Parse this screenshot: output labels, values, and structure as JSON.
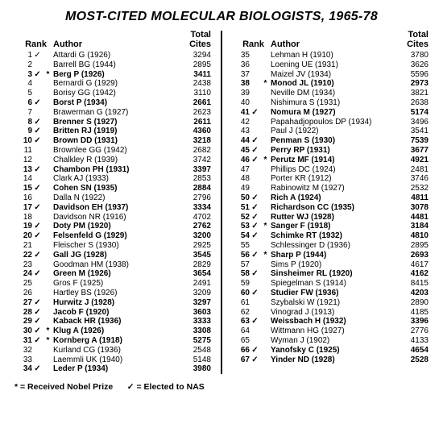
{
  "title": "MOST-CITED MOLECULAR BIOLOGISTS, 1965-78",
  "headers": {
    "rank": "Rank",
    "author": "Author",
    "cites_line1": "Total",
    "cites_line2": "Cites"
  },
  "legend": "* = Received Nobel Prize      ✓ = Elected to NAS",
  "left": [
    {
      "rank": 1,
      "check": true,
      "star": false,
      "bold": false,
      "author": "Attardi G (1926)",
      "cites": 3294
    },
    {
      "rank": 2,
      "check": false,
      "star": false,
      "bold": false,
      "author": "Barrell BG (1944)",
      "cites": 2895
    },
    {
      "rank": 3,
      "check": true,
      "star": true,
      "bold": true,
      "author": "Berg P (1926)",
      "cites": 3411
    },
    {
      "rank": 4,
      "check": false,
      "star": false,
      "bold": false,
      "author": "Bernardi G (1929)",
      "cites": 2438
    },
    {
      "rank": 5,
      "check": false,
      "star": false,
      "bold": false,
      "author": "Borisy GG (1942)",
      "cites": 3110
    },
    {
      "rank": 6,
      "check": true,
      "star": false,
      "bold": true,
      "author": "Borst P (1934)",
      "cites": 2661
    },
    {
      "rank": 7,
      "check": false,
      "star": false,
      "bold": false,
      "author": "Brawerman G (1927)",
      "cites": 2623
    },
    {
      "rank": 8,
      "check": true,
      "star": false,
      "bold": true,
      "author": "Brenner S (1927)",
      "cites": 2611
    },
    {
      "rank": 9,
      "check": true,
      "star": false,
      "bold": true,
      "author": "Britten RJ (1919)",
      "cites": 4360
    },
    {
      "rank": 10,
      "check": true,
      "star": false,
      "bold": true,
      "author": "Brown DD (1931)",
      "cites": 3218
    },
    {
      "rank": 11,
      "check": false,
      "star": false,
      "bold": false,
      "author": "Brownlee GG (1942)",
      "cites": 2682
    },
    {
      "rank": 12,
      "check": false,
      "star": false,
      "bold": false,
      "author": "Chalkley R (1939)",
      "cites": 3742
    },
    {
      "rank": 13,
      "check": true,
      "star": false,
      "bold": true,
      "author": "Chambon PH (1931)",
      "cites": 3397
    },
    {
      "rank": 14,
      "check": false,
      "star": false,
      "bold": false,
      "author": "Clark AJ (1933)",
      "cites": 2853
    },
    {
      "rank": 15,
      "check": true,
      "star": false,
      "bold": true,
      "author": "Cohen SN (1935)",
      "cites": 2884
    },
    {
      "rank": 16,
      "check": false,
      "star": false,
      "bold": false,
      "author": "Dalla N (1922)",
      "cites": 2796
    },
    {
      "rank": 17,
      "check": true,
      "star": false,
      "bold": true,
      "author": "Davidson EH (1937)",
      "cites": 3334
    },
    {
      "rank": 18,
      "check": false,
      "star": false,
      "bold": false,
      "author": "Davidson NR (1916)",
      "cites": 4702
    },
    {
      "rank": 19,
      "check": true,
      "star": false,
      "bold": true,
      "author": "Doty PM (1920)",
      "cites": 2762
    },
    {
      "rank": 20,
      "check": true,
      "star": false,
      "bold": true,
      "author": "Felsenfeld G (1929)",
      "cites": 3200
    },
    {
      "rank": 21,
      "check": false,
      "star": false,
      "bold": false,
      "author": "Fleischer S (1930)",
      "cites": 2925
    },
    {
      "rank": 22,
      "check": true,
      "star": false,
      "bold": true,
      "author": "Gall JG (1928)",
      "cites": 3545
    },
    {
      "rank": 23,
      "check": false,
      "star": false,
      "bold": false,
      "author": "Goodman HM (1938)",
      "cites": 2829
    },
    {
      "rank": 24,
      "check": true,
      "star": false,
      "bold": true,
      "author": "Green M (1926)",
      "cites": 3654
    },
    {
      "rank": 25,
      "check": false,
      "star": false,
      "bold": false,
      "author": "Gros F (1925)",
      "cites": 2491
    },
    {
      "rank": 26,
      "check": false,
      "star": false,
      "bold": false,
      "author": "Hartley BS (1926)",
      "cites": 3209
    },
    {
      "rank": 27,
      "check": true,
      "star": false,
      "bold": true,
      "author": "Hurwitz J (1928)",
      "cites": 3297
    },
    {
      "rank": 28,
      "check": true,
      "star": false,
      "bold": true,
      "author": "Jacob F (1920)",
      "cites": 3603
    },
    {
      "rank": 29,
      "check": true,
      "star": false,
      "bold": true,
      "author": "Kaback HR (1936)",
      "cites": 3333
    },
    {
      "rank": 30,
      "check": true,
      "star": true,
      "bold": true,
      "author": "Klug A (1926)",
      "cites": 3308
    },
    {
      "rank": 31,
      "check": true,
      "star": true,
      "bold": true,
      "author": "Kornberg A (1918)",
      "cites": 5275
    },
    {
      "rank": 32,
      "check": false,
      "star": false,
      "bold": false,
      "author": "Kurland CG (1936)",
      "cites": 2548
    },
    {
      "rank": 33,
      "check": false,
      "star": false,
      "bold": false,
      "author": "Laemmli UK (1940)",
      "cites": 5148
    },
    {
      "rank": 34,
      "check": true,
      "star": false,
      "bold": true,
      "author": "Leder P (1934)",
      "cites": 3980
    }
  ],
  "right": [
    {
      "rank": 35,
      "check": false,
      "star": false,
      "bold": false,
      "author": "Lehman H (1910)",
      "cites": 3780
    },
    {
      "rank": 36,
      "check": false,
      "star": false,
      "bold": false,
      "author": "Loening UE (1931)",
      "cites": 3626
    },
    {
      "rank": 37,
      "check": false,
      "star": false,
      "bold": false,
      "author": "Maizel JV (1934)",
      "cites": 5596
    },
    {
      "rank": 38,
      "check": false,
      "star": true,
      "bold": true,
      "author": "Monod JL (1910)",
      "cites": 2973
    },
    {
      "rank": 39,
      "check": false,
      "star": false,
      "bold": false,
      "author": "Neville DM (1934)",
      "cites": 3821
    },
    {
      "rank": 40,
      "check": false,
      "star": false,
      "bold": false,
      "author": "Nishimura S (1931)",
      "cites": 2638
    },
    {
      "rank": 41,
      "check": true,
      "star": false,
      "bold": true,
      "author": "Nomura M (1927)",
      "cites": 5174
    },
    {
      "rank": 42,
      "check": false,
      "star": false,
      "bold": false,
      "author": "Papahadjopoulos DP (1934)",
      "cites": 3496
    },
    {
      "rank": 43,
      "check": false,
      "star": false,
      "bold": false,
      "author": "Paul J (1922)",
      "cites": 3541
    },
    {
      "rank": 44,
      "check": true,
      "star": false,
      "bold": true,
      "author": "Penman S (1930)",
      "cites": 7539
    },
    {
      "rank": 45,
      "check": true,
      "star": false,
      "bold": true,
      "author": "Perry RP (1931)",
      "cites": 3677
    },
    {
      "rank": 46,
      "check": true,
      "star": true,
      "bold": true,
      "author": "Perutz MF (1914)",
      "cites": 4921
    },
    {
      "rank": 47,
      "check": false,
      "star": false,
      "bold": false,
      "author": "Phillips DC (1924)",
      "cites": 2481
    },
    {
      "rank": 48,
      "check": false,
      "star": false,
      "bold": false,
      "author": "Porter KR (1912)",
      "cites": 3746
    },
    {
      "rank": 49,
      "check": false,
      "star": false,
      "bold": false,
      "author": "Rabinowitz M (1927)",
      "cites": 2532
    },
    {
      "rank": 50,
      "check": true,
      "star": false,
      "bold": true,
      "author": "Rich A (1924)",
      "cites": 4811
    },
    {
      "rank": 51,
      "check": true,
      "star": false,
      "bold": true,
      "author": "Richardson CC (1935)",
      "cites": 3078
    },
    {
      "rank": 52,
      "check": true,
      "star": false,
      "bold": true,
      "author": "Rutter WJ (1928)",
      "cites": 4481
    },
    {
      "rank": 53,
      "check": true,
      "star": true,
      "bold": true,
      "author": "Sanger F (1918)",
      "cites": 3184
    },
    {
      "rank": 54,
      "check": true,
      "star": false,
      "bold": true,
      "author": "Schimke RT (1932)",
      "cites": 4810
    },
    {
      "rank": 55,
      "check": false,
      "star": false,
      "bold": false,
      "author": "Schlessinger D (1936)",
      "cites": 2895
    },
    {
      "rank": 56,
      "check": true,
      "star": true,
      "bold": true,
      "author": "Sharp P (1944)",
      "cites": 2693
    },
    {
      "rank": 57,
      "check": false,
      "star": false,
      "bold": false,
      "author": "Sims P (1920)",
      "cites": 4617
    },
    {
      "rank": 58,
      "check": true,
      "star": false,
      "bold": true,
      "author": "Sinsheimer RL (1920)",
      "cites": 4162
    },
    {
      "rank": 59,
      "check": false,
      "star": false,
      "bold": false,
      "author": "Spiegelman S (1914)",
      "cites": 8415
    },
    {
      "rank": 60,
      "check": true,
      "star": false,
      "bold": true,
      "author": "Studier FW (1936)",
      "cites": 4203
    },
    {
      "rank": 61,
      "check": false,
      "star": false,
      "bold": false,
      "author": "Szybalski W (1921)",
      "cites": 2890
    },
    {
      "rank": 62,
      "check": false,
      "star": false,
      "bold": false,
      "author": "Vinograd J (1913)",
      "cites": 4185
    },
    {
      "rank": 63,
      "check": true,
      "star": false,
      "bold": true,
      "author": "Weissbach H (1932)",
      "cites": 3396
    },
    {
      "rank": 64,
      "check": false,
      "star": false,
      "bold": false,
      "author": "Wittmann HG (1927)",
      "cites": 2776
    },
    {
      "rank": 65,
      "check": false,
      "star": false,
      "bold": false,
      "author": "Wyman J (1902)",
      "cites": 4133
    },
    {
      "rank": 66,
      "check": true,
      "star": false,
      "bold": true,
      "author": "Yanofsky C (1925)",
      "cites": 4654
    },
    {
      "rank": 67,
      "check": true,
      "star": false,
      "bold": true,
      "author": "Yinder ND (1928)",
      "cites": 2528
    }
  ]
}
